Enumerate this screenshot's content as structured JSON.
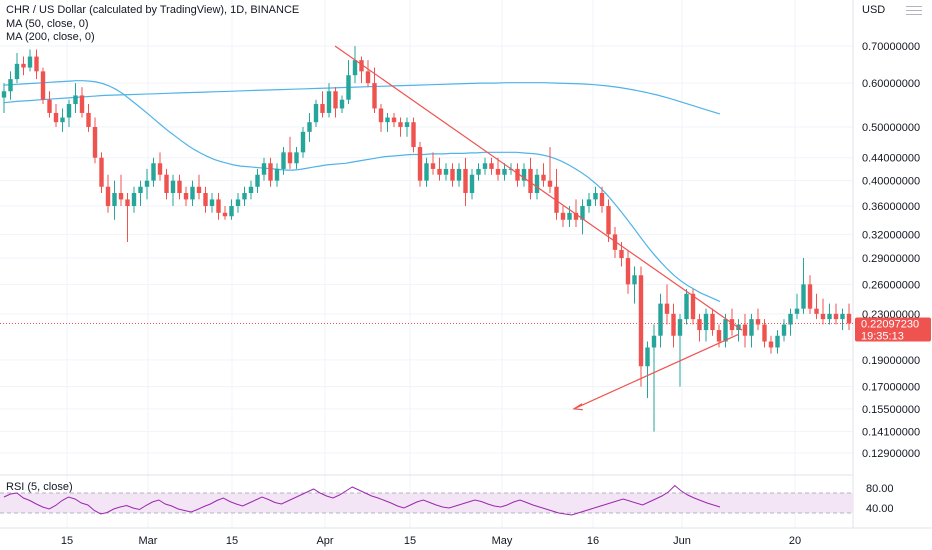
{
  "header": {
    "title": "CHR / US Dollar (calculated by TradingView), 1D, BINANCE",
    "ma_fast_label": "MA (50, close, 0)",
    "ma_slow_label": "MA (200, close, 0)",
    "currency": "USD",
    "rsi_label": "RSI (5, close)"
  },
  "price_badge": {
    "price": "0.22097230",
    "countdown": "19:35:13"
  },
  "colors": {
    "up": "#26a69a",
    "down": "#ef5350",
    "ma_line": "#4fb3e8",
    "triangle": "#ef5350",
    "rsi_line": "#9c27b0",
    "rsi_band": "#f3e5f5"
  },
  "chart_data": [
    {
      "type": "candlestick",
      "title": "CHR / US Dollar (calculated by TradingView), 1D, BINANCE",
      "y_scale": "log",
      "ylim": [
        0.12,
        0.8
      ],
      "y_ticks": [
        "0.70000000",
        "0.60000000",
        "0.50000000",
        "0.44000000",
        "0.40000000",
        "0.36000000",
        "0.32000000",
        "0.29000000",
        "0.26000000",
        "0.23000000",
        "0.19000000",
        "0.17000000",
        "0.15500000",
        "0.14100000",
        "0.12900000"
      ],
      "x_ticks": [
        "15",
        "Mar",
        "15",
        "Apr",
        "15",
        "May",
        "16",
        "Jun",
        "20"
      ],
      "grid": true,
      "last_price": 0.2209723,
      "candles": [
        [
          0.565,
          0.6,
          0.53,
          0.58
        ],
        [
          0.58,
          0.63,
          0.56,
          0.61
        ],
        [
          0.61,
          0.68,
          0.6,
          0.65
        ],
        [
          0.65,
          0.67,
          0.62,
          0.64
        ],
        [
          0.64,
          0.69,
          0.63,
          0.67
        ],
        [
          0.67,
          0.69,
          0.61,
          0.63
        ],
        [
          0.63,
          0.64,
          0.55,
          0.56
        ],
        [
          0.56,
          0.58,
          0.52,
          0.53
        ],
        [
          0.53,
          0.55,
          0.5,
          0.51
        ],
        [
          0.51,
          0.54,
          0.49,
          0.52
        ],
        [
          0.52,
          0.56,
          0.5,
          0.55
        ],
        [
          0.55,
          0.6,
          0.53,
          0.57
        ],
        [
          0.57,
          0.59,
          0.52,
          0.53
        ],
        [
          0.53,
          0.55,
          0.49,
          0.5
        ],
        [
          0.5,
          0.52,
          0.43,
          0.44
        ],
        [
          0.44,
          0.45,
          0.38,
          0.39
        ],
        [
          0.39,
          0.41,
          0.35,
          0.36
        ],
        [
          0.36,
          0.4,
          0.34,
          0.38
        ],
        [
          0.38,
          0.41,
          0.36,
          0.37
        ],
        [
          0.37,
          0.38,
          0.31,
          0.36
        ],
        [
          0.36,
          0.39,
          0.35,
          0.38
        ],
        [
          0.38,
          0.4,
          0.36,
          0.39
        ],
        [
          0.39,
          0.42,
          0.37,
          0.4
        ],
        [
          0.4,
          0.44,
          0.39,
          0.43
        ],
        [
          0.43,
          0.45,
          0.4,
          0.41
        ],
        [
          0.41,
          0.42,
          0.37,
          0.38
        ],
        [
          0.38,
          0.41,
          0.36,
          0.4
        ],
        [
          0.4,
          0.41,
          0.37,
          0.38
        ],
        [
          0.38,
          0.39,
          0.36,
          0.37
        ],
        [
          0.37,
          0.4,
          0.36,
          0.39
        ],
        [
          0.39,
          0.41,
          0.37,
          0.38
        ],
        [
          0.38,
          0.39,
          0.35,
          0.36
        ],
        [
          0.36,
          0.38,
          0.35,
          0.37
        ],
        [
          0.37,
          0.38,
          0.34,
          0.35
        ],
        [
          0.35,
          0.36,
          0.34,
          0.345
        ],
        [
          0.345,
          0.37,
          0.34,
          0.36
        ],
        [
          0.36,
          0.38,
          0.35,
          0.37
        ],
        [
          0.37,
          0.39,
          0.36,
          0.38
        ],
        [
          0.38,
          0.4,
          0.37,
          0.39
        ],
        [
          0.39,
          0.42,
          0.38,
          0.41
        ],
        [
          0.41,
          0.44,
          0.4,
          0.43
        ],
        [
          0.43,
          0.44,
          0.39,
          0.4
        ],
        [
          0.4,
          0.43,
          0.39,
          0.42
        ],
        [
          0.42,
          0.46,
          0.41,
          0.45
        ],
        [
          0.45,
          0.48,
          0.42,
          0.43
        ],
        [
          0.43,
          0.46,
          0.42,
          0.45
        ],
        [
          0.45,
          0.5,
          0.44,
          0.49
        ],
        [
          0.49,
          0.53,
          0.47,
          0.51
        ],
        [
          0.51,
          0.56,
          0.5,
          0.55
        ],
        [
          0.55,
          0.58,
          0.52,
          0.53
        ],
        [
          0.53,
          0.6,
          0.52,
          0.58
        ],
        [
          0.58,
          0.59,
          0.52,
          0.54
        ],
        [
          0.54,
          0.57,
          0.53,
          0.56
        ],
        [
          0.56,
          0.66,
          0.55,
          0.62
        ],
        [
          0.62,
          0.7,
          0.6,
          0.66
        ],
        [
          0.66,
          0.67,
          0.6,
          0.63
        ],
        [
          0.63,
          0.66,
          0.59,
          0.6
        ],
        [
          0.6,
          0.64,
          0.53,
          0.54
        ],
        [
          0.54,
          0.55,
          0.49,
          0.51
        ],
        [
          0.51,
          0.53,
          0.49,
          0.52
        ],
        [
          0.52,
          0.53,
          0.5,
          0.51
        ],
        [
          0.51,
          0.52,
          0.48,
          0.5
        ],
        [
          0.5,
          0.52,
          0.48,
          0.51
        ],
        [
          0.51,
          0.52,
          0.45,
          0.46
        ],
        [
          0.46,
          0.47,
          0.39,
          0.4
        ],
        [
          0.4,
          0.44,
          0.39,
          0.43
        ],
        [
          0.43,
          0.45,
          0.41,
          0.42
        ],
        [
          0.42,
          0.44,
          0.4,
          0.41
        ],
        [
          0.41,
          0.43,
          0.4,
          0.42
        ],
        [
          0.42,
          0.43,
          0.39,
          0.4
        ],
        [
          0.4,
          0.43,
          0.39,
          0.42
        ],
        [
          0.42,
          0.44,
          0.36,
          0.38
        ],
        [
          0.38,
          0.42,
          0.37,
          0.41
        ],
        [
          0.41,
          0.43,
          0.4,
          0.42
        ],
        [
          0.42,
          0.44,
          0.41,
          0.43
        ],
        [
          0.43,
          0.44,
          0.41,
          0.42
        ],
        [
          0.42,
          0.44,
          0.4,
          0.41
        ],
        [
          0.41,
          0.43,
          0.4,
          0.42
        ],
        [
          0.42,
          0.43,
          0.41,
          0.42
        ],
        [
          0.42,
          0.43,
          0.39,
          0.4
        ],
        [
          0.4,
          0.43,
          0.39,
          0.42
        ],
        [
          0.42,
          0.44,
          0.37,
          0.38
        ],
        [
          0.38,
          0.42,
          0.37,
          0.41
        ],
        [
          0.41,
          0.43,
          0.39,
          0.4
        ],
        [
          0.4,
          0.46,
          0.38,
          0.39
        ],
        [
          0.39,
          0.42,
          0.34,
          0.35
        ],
        [
          0.35,
          0.36,
          0.33,
          0.34
        ],
        [
          0.34,
          0.36,
          0.33,
          0.35
        ],
        [
          0.35,
          0.37,
          0.33,
          0.34
        ],
        [
          0.34,
          0.37,
          0.32,
          0.36
        ],
        [
          0.36,
          0.38,
          0.35,
          0.37
        ],
        [
          0.37,
          0.39,
          0.36,
          0.38
        ],
        [
          0.38,
          0.39,
          0.35,
          0.36
        ],
        [
          0.36,
          0.37,
          0.31,
          0.32
        ],
        [
          0.32,
          0.33,
          0.29,
          0.3
        ],
        [
          0.3,
          0.31,
          0.28,
          0.29
        ],
        [
          0.29,
          0.3,
          0.25,
          0.26
        ],
        [
          0.26,
          0.28,
          0.24,
          0.27
        ],
        [
          0.27,
          0.28,
          0.17,
          0.185
        ],
        [
          0.185,
          0.205,
          0.162,
          0.2
        ],
        [
          0.2,
          0.22,
          0.141,
          0.21
        ],
        [
          0.21,
          0.25,
          0.2,
          0.24
        ],
        [
          0.24,
          0.26,
          0.22,
          0.23
        ],
        [
          0.23,
          0.24,
          0.2,
          0.21
        ],
        [
          0.21,
          0.23,
          0.17,
          0.225
        ],
        [
          0.225,
          0.255,
          0.22,
          0.25
        ],
        [
          0.25,
          0.255,
          0.22,
          0.225
        ],
        [
          0.225,
          0.23,
          0.205,
          0.215
        ],
        [
          0.215,
          0.235,
          0.205,
          0.23
        ],
        [
          0.23,
          0.235,
          0.21,
          0.215
        ],
        [
          0.215,
          0.22,
          0.2,
          0.205
        ],
        [
          0.205,
          0.23,
          0.2,
          0.225
        ],
        [
          0.225,
          0.235,
          0.21,
          0.215
        ],
        [
          0.215,
          0.225,
          0.205,
          0.22
        ],
        [
          0.22,
          0.23,
          0.2,
          0.21
        ],
        [
          0.21,
          0.23,
          0.2,
          0.225
        ],
        [
          0.225,
          0.235,
          0.215,
          0.22
        ],
        [
          0.22,
          0.225,
          0.2,
          0.205
        ],
        [
          0.205,
          0.21,
          0.195,
          0.2
        ],
        [
          0.2,
          0.215,
          0.195,
          0.21
        ],
        [
          0.21,
          0.225,
          0.205,
          0.22
        ],
        [
          0.22,
          0.235,
          0.21,
          0.23
        ],
        [
          0.23,
          0.25,
          0.225,
          0.235
        ],
        [
          0.235,
          0.29,
          0.23,
          0.26
        ],
        [
          0.26,
          0.27,
          0.23,
          0.235
        ],
        [
          0.235,
          0.25,
          0.225,
          0.23
        ],
        [
          0.23,
          0.245,
          0.22,
          0.225
        ],
        [
          0.225,
          0.24,
          0.22,
          0.23
        ],
        [
          0.23,
          0.24,
          0.22,
          0.225
        ],
        [
          0.225,
          0.235,
          0.215,
          0.23
        ],
        [
          0.23,
          0.24,
          0.215,
          0.221
        ]
      ],
      "series": [
        {
          "name": "MA (50, close, 0)",
          "values": [
            0.595,
            0.596,
            0.597,
            0.598,
            0.599,
            0.6,
            0.601,
            0.602,
            0.603,
            0.604,
            0.605,
            0.606,
            0.606,
            0.605,
            0.603,
            0.599,
            0.593,
            0.585,
            0.575,
            0.563,
            0.551,
            0.539,
            0.527,
            0.515,
            0.503,
            0.492,
            0.482,
            0.472,
            0.463,
            0.455,
            0.448,
            0.442,
            0.437,
            0.433,
            0.43,
            0.427,
            0.425,
            0.424,
            0.423,
            0.422,
            0.421,
            0.42,
            0.419,
            0.418,
            0.418,
            0.419,
            0.421,
            0.423,
            0.425,
            0.427,
            0.428,
            0.429,
            0.43,
            0.432,
            0.434,
            0.436,
            0.438,
            0.44,
            0.442,
            0.443,
            0.444,
            0.445,
            0.446,
            0.446,
            0.446,
            0.447,
            0.447,
            0.447,
            0.448,
            0.448,
            0.448,
            0.449,
            0.449,
            0.45,
            0.45,
            0.45,
            0.45,
            0.45,
            0.45,
            0.449,
            0.448,
            0.447,
            0.445,
            0.442,
            0.438,
            0.433,
            0.427,
            0.42,
            0.413,
            0.405,
            0.396,
            0.386,
            0.375,
            0.363,
            0.351,
            0.339,
            0.327,
            0.315,
            0.304,
            0.294,
            0.285,
            0.277,
            0.27,
            0.264,
            0.259,
            0.255,
            0.251,
            0.248,
            0.245,
            0.242
          ]
        },
        {
          "name": "MA (200, close, 0)",
          "values": [
            0.553,
            0.556,
            0.558,
            0.56,
            0.562,
            0.564,
            0.566,
            0.568,
            0.57,
            0.571,
            0.572,
            0.573,
            0.574,
            0.575,
            0.576,
            0.577,
            0.578,
            0.579,
            0.58,
            0.581,
            0.582,
            0.583,
            0.584,
            0.585,
            0.586,
            0.587,
            0.588,
            0.589,
            0.59,
            0.591,
            0.592,
            0.593,
            0.594,
            0.595,
            0.596,
            0.597,
            0.598,
            0.599,
            0.6,
            0.6,
            0.601,
            0.601,
            0.601,
            0.601,
            0.6,
            0.599,
            0.598,
            0.596,
            0.593,
            0.589,
            0.584,
            0.578,
            0.571,
            0.563,
            0.554,
            0.545,
            0.536,
            0.528
          ]
        },
        {
          "name": "RSI (5, close)",
          "values": [
            62,
            68,
            70,
            60,
            55,
            48,
            42,
            38,
            45,
            55,
            62,
            58,
            50,
            46,
            35,
            28,
            31,
            38,
            42,
            45,
            40,
            37,
            45,
            52,
            56,
            48,
            44,
            38,
            35,
            32,
            37,
            43,
            48,
            55,
            60,
            53,
            48,
            44,
            50,
            56,
            62,
            57,
            51,
            48,
            54,
            60,
            66,
            72,
            78,
            70,
            64,
            60,
            66,
            74,
            82,
            76,
            70,
            64,
            60,
            55,
            50,
            44,
            40,
            46,
            52,
            56,
            51,
            46,
            42,
            40,
            44,
            48,
            52,
            56,
            53,
            48,
            44,
            42,
            46,
            52,
            56,
            51,
            46,
            42,
            38,
            34,
            30,
            28,
            26,
            30,
            34,
            38,
            42,
            46,
            50,
            54,
            58,
            54,
            50,
            46,
            52,
            58,
            64,
            72,
            85,
            74,
            66,
            60,
            55,
            50,
            46,
            42
          ]
        }
      ],
      "annotations": {
        "triangle_upper": [
          [
            0.7,
            0.215
          ]
        ],
        "triangle_lower": [
          [
            0.155,
            0.215
          ]
        ]
      },
      "rsi_ylim": [
        0,
        100
      ],
      "rsi_ticks": [
        "80.00",
        "40.00"
      ],
      "rsi_band": [
        30,
        70
      ]
    }
  ]
}
